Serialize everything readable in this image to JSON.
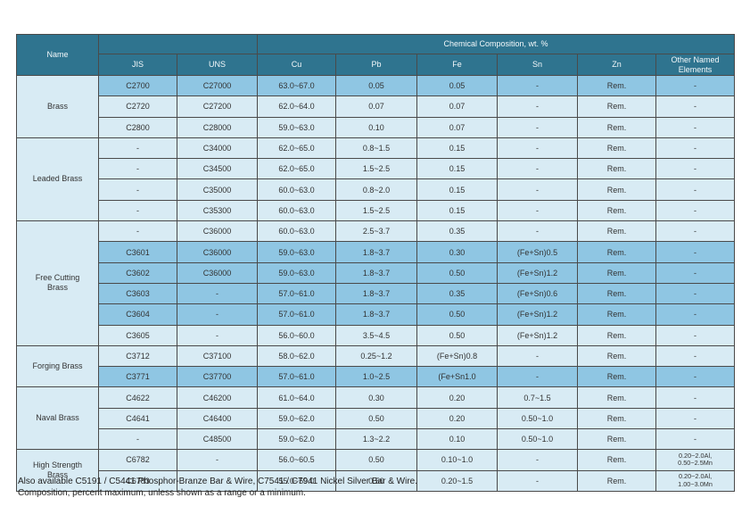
{
  "page": {
    "footer_line1": "Also available C5191 / C5441 Phosphor-Branze Bar & Wire, C7541 / C7941 Nickel Silver Bar & Wire.",
    "footer_line2": "Composition, percent maximum, unless shown as a range or a minimum."
  },
  "colors": {
    "header_bg": "#2f748f",
    "header_text": "#f4f9fb",
    "row_bg": "#d8ebf4",
    "highlight_row_bg": "#8fc6e3",
    "grid_border": "#4a4a4a",
    "body_text": "#333333"
  },
  "table": {
    "composition_title": "Chemical Composition, wt. %",
    "headers": {
      "name": "Name",
      "jis": "JIS",
      "uns": "UNS",
      "cu": "Cu",
      "pb": "Pb",
      "fe": "Fe",
      "sn": "Sn",
      "zn": "Zn",
      "other": "Other Named Elements"
    },
    "groups": [
      {
        "name": "Brass",
        "rows": [
          {
            "jis": "C2700",
            "uns": "C27000",
            "cu": "63.0~67.0",
            "pb": "0.05",
            "fe": "0.05",
            "sn": "-",
            "zn": "Rem.",
            "other": "-",
            "highlight": true
          },
          {
            "jis": "C2720",
            "uns": "C27200",
            "cu": "62.0~64.0",
            "pb": "0.07",
            "fe": "0.07",
            "sn": "-",
            "zn": "Rem.",
            "other": "-",
            "highlight": false
          },
          {
            "jis": "C2800",
            "uns": "C28000",
            "cu": "59.0~63.0",
            "pb": "0.10",
            "fe": "0.07",
            "sn": "-",
            "zn": "Rem.",
            "other": "-",
            "highlight": false
          }
        ]
      },
      {
        "name": "Leaded Brass",
        "rows": [
          {
            "jis": "-",
            "uns": "C34000",
            "cu": "62.0~65.0",
            "pb": "0.8~1.5",
            "fe": "0.15",
            "sn": "-",
            "zn": "Rem.",
            "other": "-",
            "highlight": false
          },
          {
            "jis": "-",
            "uns": "C34500",
            "cu": "62.0~65.0",
            "pb": "1.5~2.5",
            "fe": "0.15",
            "sn": "-",
            "zn": "Rem.",
            "other": "-",
            "highlight": false
          },
          {
            "jis": "-",
            "uns": "C35000",
            "cu": "60.0~63.0",
            "pb": "0.8~2.0",
            "fe": "0.15",
            "sn": "-",
            "zn": "Rem.",
            "other": "-",
            "highlight": false
          },
          {
            "jis": "-",
            "uns": "C35300",
            "cu": "60.0~63.0",
            "pb": "1.5~2.5",
            "fe": "0.15",
            "sn": "-",
            "zn": "Rem.",
            "other": "-",
            "highlight": false
          }
        ]
      },
      {
        "name": "Free Cutting Brass",
        "rows": [
          {
            "jis": "-",
            "uns": "C36000",
            "cu": "60.0~63.0",
            "pb": "2.5~3.7",
            "fe": "0.35",
            "sn": "-",
            "zn": "Rem.",
            "other": "-",
            "highlight": false
          },
          {
            "jis": "C3601",
            "uns": "C36000",
            "cu": "59.0~63.0",
            "pb": "1.8~3.7",
            "fe": "0.30",
            "sn": "(Fe+Sn)0.5",
            "zn": "Rem.",
            "other": "-",
            "highlight": true
          },
          {
            "jis": "C3602",
            "uns": "C36000",
            "cu": "59.0~63.0",
            "pb": "1.8~3.7",
            "fe": "0.50",
            "sn": "(Fe+Sn)1.2",
            "zn": "Rem.",
            "other": "-",
            "highlight": true
          },
          {
            "jis": "C3603",
            "uns": "-",
            "cu": "57.0~61.0",
            "pb": "1.8~3.7",
            "fe": "0.35",
            "sn": "(Fe+Sn)0.6",
            "zn": "Rem.",
            "other": "-",
            "highlight": true
          },
          {
            "jis": "C3604",
            "uns": "-",
            "cu": "57.0~61.0",
            "pb": "1.8~3.7",
            "fe": "0.50",
            "sn": "(Fe+Sn)1.2",
            "zn": "Rem.",
            "other": "-",
            "highlight": true
          },
          {
            "jis": "C3605",
            "uns": "-",
            "cu": "56.0~60.0",
            "pb": "3.5~4.5",
            "fe": "0.50",
            "sn": "(Fe+Sn)1.2",
            "zn": "Rem.",
            "other": "-",
            "highlight": false
          }
        ]
      },
      {
        "name": "Forging Brass",
        "rows": [
          {
            "jis": "C3712",
            "uns": "C37100",
            "cu": "58.0~62.0",
            "pb": "0.25~1.2",
            "fe": "(Fe+Sn)0.8",
            "sn": "-",
            "zn": "Rem.",
            "other": "-",
            "highlight": false
          },
          {
            "jis": "C3771",
            "uns": "C37700",
            "cu": "57.0~61.0",
            "pb": "1.0~2.5",
            "fe": "(Fe+Sn1.0",
            "sn": "-",
            "zn": "Rem.",
            "other": "-",
            "highlight": true
          }
        ]
      },
      {
        "name": "Naval Brass",
        "rows": [
          {
            "jis": "C4622",
            "uns": "C46200",
            "cu": "61.0~64.0",
            "pb": "0.30",
            "fe": "0.20",
            "sn": "0.7~1.5",
            "zn": "Rem.",
            "other": "-",
            "highlight": false
          },
          {
            "jis": "C4641",
            "uns": "C46400",
            "cu": "59.0~62.0",
            "pb": "0.50",
            "fe": "0.20",
            "sn": "0.50~1.0",
            "zn": "Rem.",
            "other": "-",
            "highlight": false
          },
          {
            "jis": "-",
            "uns": "C48500",
            "cu": "59.0~62.0",
            "pb": "1.3~2.2",
            "fe": "0.10",
            "sn": "0.50~1.0",
            "zn": "Rem.",
            "other": "-",
            "highlight": false
          }
        ]
      },
      {
        "name": "High Strength Brass",
        "rows": [
          {
            "jis": "C6782",
            "uns": "-",
            "cu": "56.0~60.5",
            "pb": "0.50",
            "fe": "0.10~1.0",
            "sn": "-",
            "zn": "Rem.",
            "other": "0.20~2.0Al,\n0.50~2.5Mn",
            "highlight": false
          },
          {
            "jis": "C6783",
            "uns": "-",
            "cu": "55.0~59.0",
            "pb": "0.50",
            "fe": "0.20~1.5",
            "sn": "-",
            "zn": "Rem.",
            "other": "0.20~2.0Al,\n1.00~3.0Mn",
            "highlight": false
          }
        ]
      }
    ]
  }
}
